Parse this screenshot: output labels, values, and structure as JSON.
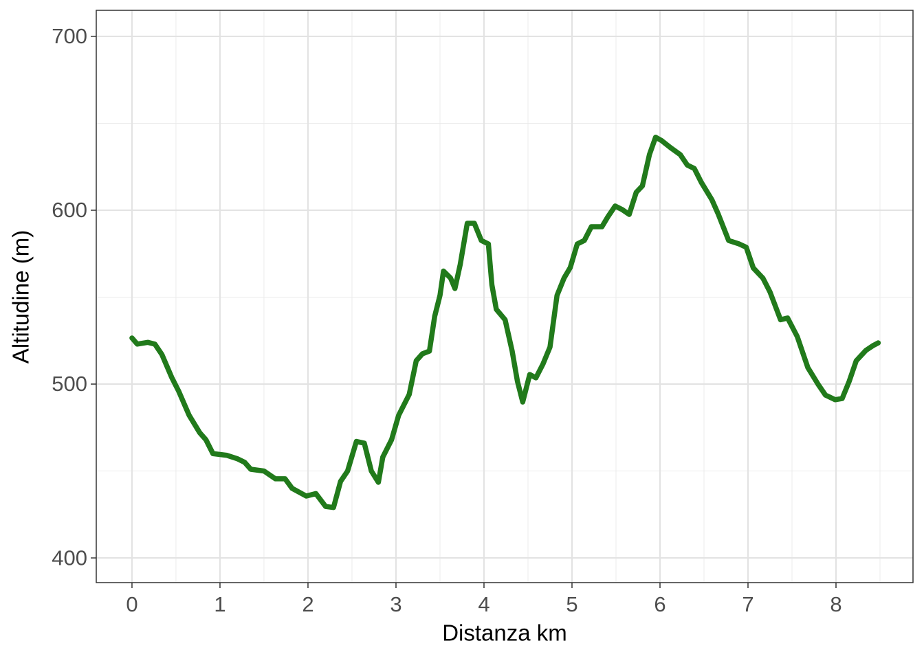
{
  "chart_data": {
    "type": "line",
    "x_label": "Distanza km",
    "y_label": "Altitudine (m)",
    "x": [
      0,
      0.06,
      0.18,
      0.26,
      0.34,
      0.45,
      0.53,
      0.65,
      0.77,
      0.84,
      0.92,
      1.08,
      1.2,
      1.28,
      1.35,
      1.5,
      1.63,
      1.74,
      1.82,
      1.98,
      2.09,
      2.2,
      2.29,
      2.37,
      2.45,
      2.55,
      2.64,
      2.72,
      2.8,
      2.85,
      2.95,
      3.03,
      3.15,
      3.23,
      3.3,
      3.38,
      3.44,
      3.5,
      3.54,
      3.62,
      3.67,
      3.73,
      3.81,
      3.89,
      3.97,
      4.05,
      4.09,
      4.14,
      4.24,
      4.32,
      4.38,
      4.44,
      4.52,
      4.59,
      4.67,
      4.75,
      4.83,
      4.91,
      4.98,
      5.06,
      5.14,
      5.22,
      5.34,
      5.41,
      5.49,
      5.57,
      5.65,
      5.73,
      5.8,
      5.88,
      5.95,
      6.02,
      6.12,
      6.23,
      6.31,
      6.39,
      6.47,
      6.59,
      6.66,
      6.78,
      6.9,
      6.98,
      7.06,
      7.17,
      7.25,
      7.37,
      7.45,
      7.56,
      7.68,
      7.8,
      7.88,
      7.99,
      8.07,
      8.15,
      8.23,
      8.34,
      8.42,
      8.48
    ],
    "series": [
      {
        "color": "#217a1b",
        "values": [
          526.5,
          523,
          524,
          523,
          517,
          504,
          496,
          482,
          472,
          468,
          460,
          459,
          457,
          455,
          451,
          450,
          445.5,
          445.5,
          440,
          435.6,
          437,
          429.6,
          429,
          444,
          450,
          467,
          466,
          450,
          443.5,
          458,
          468,
          482,
          494,
          513.4,
          517.4,
          519,
          539,
          551,
          565,
          561,
          555,
          568.8,
          592.5,
          592.5,
          582.6,
          580.6,
          557,
          543,
          537,
          519,
          501.6,
          489.7,
          505.5,
          503.6,
          511.5,
          521.3,
          551,
          561,
          567,
          580.6,
          582.6,
          590.5,
          590.5,
          596.4,
          602.4,
          600.4,
          597.6,
          610.3,
          614,
          632,
          642,
          640,
          636,
          632,
          626,
          624,
          616,
          606,
          598,
          582.6,
          580.6,
          578.7,
          566.8,
          560.9,
          553,
          537,
          538,
          527.3,
          509.5,
          499.6,
          493.7,
          491,
          491.7,
          501.6,
          513.4,
          519.4,
          522.1,
          523.7
        ]
      }
    ],
    "xlim": [
      -0.406,
      8.875
    ],
    "ylim": [
      385.8,
      715
    ],
    "xticks": [
      0,
      1,
      2,
      3,
      4,
      5,
      6,
      7,
      8
    ],
    "yticks": [
      400,
      500,
      600,
      700
    ],
    "grid": true
  }
}
